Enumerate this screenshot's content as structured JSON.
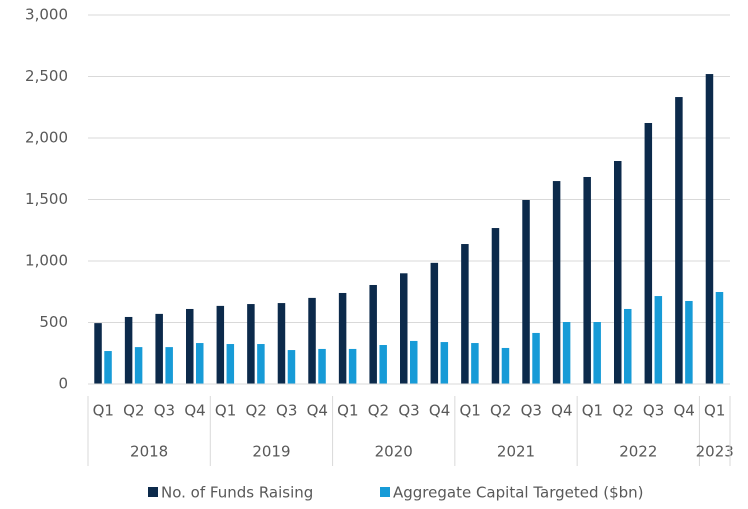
{
  "chart_data": {
    "type": "bar",
    "groups": [
      {
        "label": "2018",
        "categories": [
          "Q1",
          "Q2",
          "Q3",
          "Q4"
        ]
      },
      {
        "label": "2019",
        "categories": [
          "Q1",
          "Q2",
          "Q3",
          "Q4"
        ]
      },
      {
        "label": "2020",
        "categories": [
          "Q1",
          "Q2",
          "Q3",
          "Q4"
        ]
      },
      {
        "label": "2021",
        "categories": [
          "Q1",
          "Q2",
          "Q3",
          "Q4"
        ]
      },
      {
        "label": "2022",
        "categories": [
          "Q1",
          "Q2",
          "Q3",
          "Q4"
        ]
      },
      {
        "label": "2023",
        "categories": [
          "Q1"
        ]
      }
    ],
    "series": [
      {
        "name": "No. of Funds Raising",
        "color": "#0c2a4b",
        "values": [
          495,
          545,
          570,
          610,
          635,
          650,
          658,
          700,
          740,
          805,
          900,
          985,
          1138,
          1268,
          1496,
          1650,
          1683,
          1813,
          2122,
          2333,
          2520
        ]
      },
      {
        "name": "Aggregate Capital Targeted ($bn)",
        "color": "#179bd7",
        "values": [
          268,
          300,
          300,
          333,
          325,
          325,
          276,
          285,
          285,
          317,
          350,
          341,
          333,
          293,
          415,
          504,
          504,
          610,
          715,
          675,
          748
        ]
      }
    ],
    "ylim": [
      0,
      3000
    ],
    "yticks": [
      0,
      {
        "value": 500,
        "label": "500"
      },
      {
        "value": 1000,
        "label": "1,000"
      },
      {
        "value": 1500,
        "label": "1,500"
      },
      {
        "value": 2000,
        "label": "2,000"
      },
      {
        "value": 2500,
        "label": "2,500"
      },
      {
        "value": 3000,
        "label": "3,000"
      }
    ],
    "grid": true,
    "legend": "bottom"
  }
}
